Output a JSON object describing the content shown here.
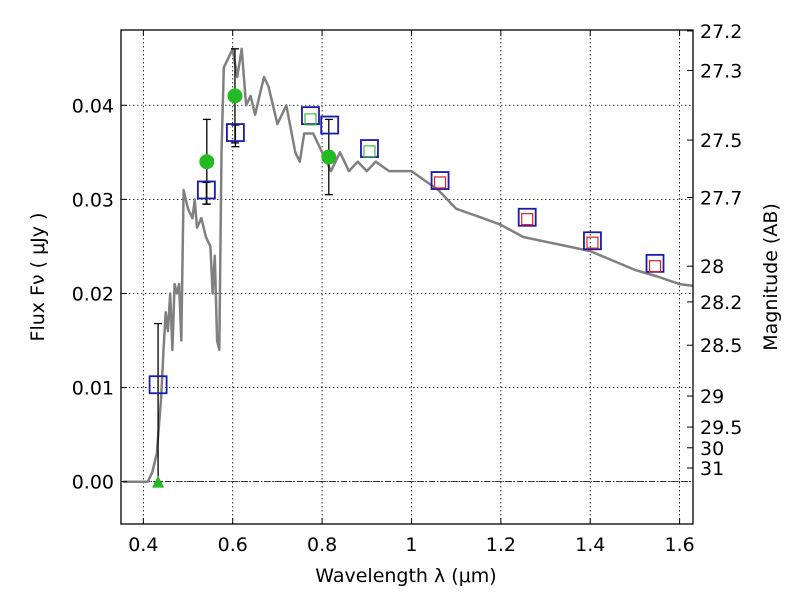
{
  "chart_data": {
    "type": "scatter",
    "xlabel": "Wavelength  λ (μm)",
    "ylabel_left": "Flux  Fν  ( μJy )",
    "ylabel_right": "Magnitude (AB)",
    "xlim": [
      0.35,
      1.63
    ],
    "ylim": [
      -0.0045,
      0.048
    ],
    "x_ticks": [
      0.4,
      0.6,
      0.8,
      1.0,
      1.2,
      1.4,
      1.6
    ],
    "x_tick_labels": [
      "0.4",
      "0.6",
      "0.8",
      "1",
      "1.2",
      "1.4",
      "1.6"
    ],
    "y_ticks": [
      0.0,
      0.01,
      0.02,
      0.03,
      0.04
    ],
    "y_tick_labels": [
      "0.00",
      "0.01",
      "0.02",
      "0.03",
      "0.04"
    ],
    "right_ticks": [
      {
        "label": "27.2",
        "flux": 0.0479
      },
      {
        "label": "27.3",
        "flux": 0.0437
      },
      {
        "label": "27.5",
        "flux": 0.0363
      },
      {
        "label": "27.7",
        "flux": 0.0302
      },
      {
        "label": "28",
        "flux": 0.0229
      },
      {
        "label": "28.2",
        "flux": 0.0191
      },
      {
        "label": "28.5",
        "flux": 0.0145
      },
      {
        "label": "29",
        "flux": 0.0091
      },
      {
        "label": "29.5",
        "flux": 0.0058
      },
      {
        "label": "30",
        "flux": 0.0036
      },
      {
        "label": "31",
        "flux": 0.00145
      }
    ],
    "grid": true,
    "series": [
      {
        "name": "model SED",
        "kind": "line",
        "color": "#808080",
        "x": [
          0.355,
          0.41,
          0.42,
          0.43,
          0.44,
          0.445,
          0.45,
          0.455,
          0.46,
          0.465,
          0.47,
          0.475,
          0.48,
          0.485,
          0.49,
          0.5,
          0.51,
          0.515,
          0.52,
          0.53,
          0.54,
          0.55,
          0.555,
          0.56,
          0.565,
          0.57,
          0.575,
          0.58,
          0.59,
          0.6,
          0.61,
          0.62,
          0.63,
          0.64,
          0.65,
          0.66,
          0.67,
          0.68,
          0.7,
          0.72,
          0.74,
          0.75,
          0.76,
          0.78,
          0.8,
          0.82,
          0.84,
          0.86,
          0.88,
          0.9,
          0.92,
          0.95,
          1.0,
          1.03,
          1.06,
          1.08,
          1.1,
          1.13,
          1.16,
          1.2,
          1.25,
          1.3,
          1.35,
          1.4,
          1.45,
          1.5,
          1.55,
          1.6,
          1.63
        ],
        "y": [
          0.0,
          0.0,
          0.001,
          0.003,
          0.009,
          0.014,
          0.018,
          0.016,
          0.02,
          0.014,
          0.021,
          0.02,
          0.021,
          0.015,
          0.031,
          0.029,
          0.028,
          0.03,
          0.027,
          0.028,
          0.026,
          0.025,
          0.02,
          0.024,
          0.015,
          0.014,
          0.035,
          0.044,
          0.045,
          0.046,
          0.043,
          0.046,
          0.04,
          0.041,
          0.039,
          0.041,
          0.043,
          0.042,
          0.038,
          0.04,
          0.035,
          0.034,
          0.037,
          0.037,
          0.035,
          0.033,
          0.035,
          0.033,
          0.034,
          0.033,
          0.034,
          0.033,
          0.033,
          0.032,
          0.031,
          0.03,
          0.029,
          0.0285,
          0.028,
          0.0273,
          0.026,
          0.0255,
          0.025,
          0.0245,
          0.0235,
          0.0225,
          0.0218,
          0.021,
          0.0208
        ]
      },
      {
        "name": "green circles",
        "kind": "circle",
        "color": "#22bb22",
        "x": [
          0.542,
          0.605,
          0.815
        ],
        "y": [
          0.034,
          0.041,
          0.0345
        ],
        "err_low": [
          0.0045,
          0.005,
          0.004
        ],
        "err_high": [
          0.0045,
          0.005,
          0.004
        ]
      },
      {
        "name": "blue squares",
        "kind": "square",
        "color": "#1a1aaa",
        "x": [
          0.433,
          0.541,
          0.606,
          0.774,
          0.817,
          0.906,
          1.064,
          1.259,
          1.405,
          1.545
        ],
        "y": [
          0.0103,
          0.031,
          0.0371,
          0.0389,
          0.0379,
          0.0354,
          0.032,
          0.0281,
          0.0256,
          0.0232
        ],
        "err_low": [
          0.0103,
          0.0015,
          0.0015,
          0,
          0,
          0,
          0,
          0,
          0,
          0
        ],
        "err_high": [
          0.0065,
          0.0008,
          0.0008,
          0,
          0,
          0,
          0,
          0,
          0,
          0
        ]
      },
      {
        "name": "green open squares",
        "kind": "square-small",
        "color": "#44bb44",
        "x": [
          0.774,
          0.906
        ],
        "y": [
          0.0385,
          0.0351
        ]
      },
      {
        "name": "red open squares",
        "kind": "square-small",
        "color": "#dd2222",
        "x": [
          1.064,
          1.259,
          1.405,
          1.545
        ],
        "y": [
          0.0318,
          0.0279,
          0.0254,
          0.0229
        ]
      },
      {
        "name": "green triangle",
        "kind": "triangle",
        "color": "#22bb22",
        "x": [
          0.433
        ],
        "y": [
          0.0
        ]
      }
    ]
  }
}
